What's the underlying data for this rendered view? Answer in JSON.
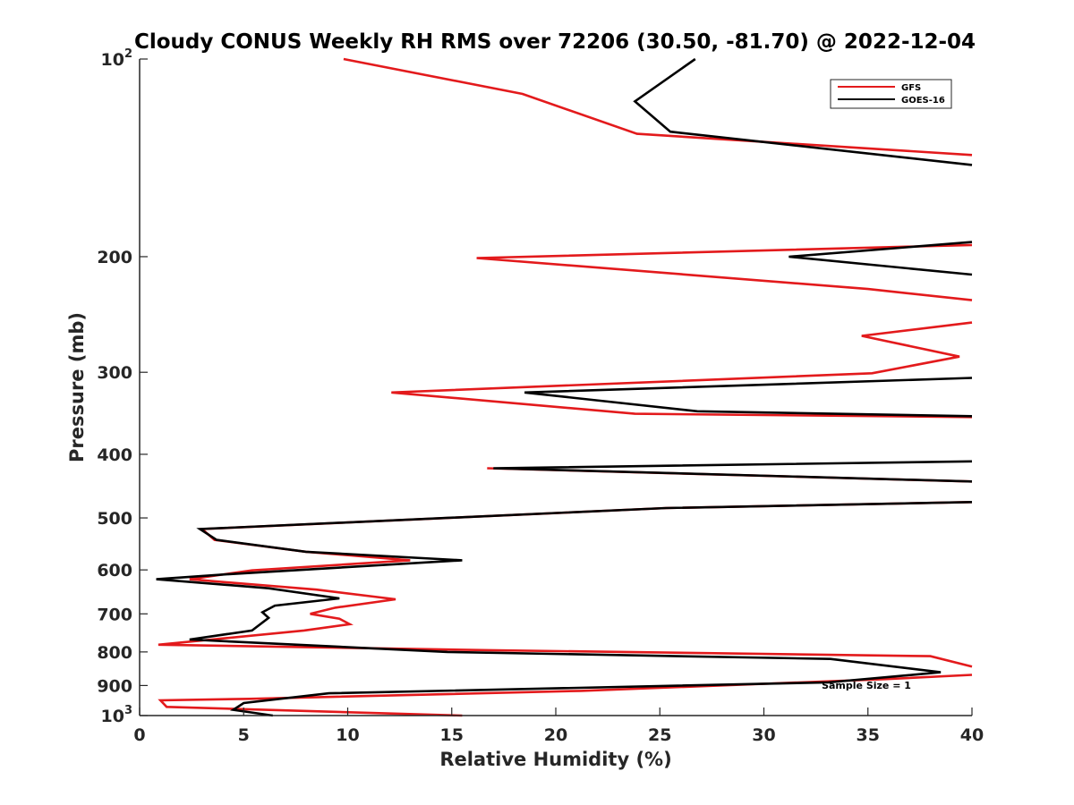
{
  "chart_data": {
    "type": "line",
    "title": "Cloudy CONUS Weekly RH RMS over 72206 (30.50, -81.70) @ 2022-12-04",
    "xlabel": "Relative Humidity (%)",
    "ylabel": "Pressure (mb)",
    "xlim": [
      0,
      40
    ],
    "ylim": [
      100,
      1000
    ],
    "yscale": "log",
    "y_reversed": true,
    "grid": false,
    "legend_position": "top-right",
    "xticks": [
      0,
      5,
      10,
      15,
      20,
      25,
      30,
      35,
      40
    ],
    "xtick_labels": [
      "0",
      "5",
      "10",
      "15",
      "20",
      "25",
      "30",
      "35",
      "40"
    ],
    "yticks": [
      100,
      200,
      300,
      400,
      500,
      600,
      700,
      800,
      900,
      1000
    ],
    "ytick_labels": [
      {
        "base": "10",
        "exp": "2"
      },
      {
        "base": "200",
        "exp": ""
      },
      {
        "base": "300",
        "exp": ""
      },
      {
        "base": "400",
        "exp": ""
      },
      {
        "base": "500",
        "exp": ""
      },
      {
        "base": "600",
        "exp": ""
      },
      {
        "base": "700",
        "exp": ""
      },
      {
        "base": "800",
        "exp": ""
      },
      {
        "base": "900",
        "exp": ""
      },
      {
        "base": "10",
        "exp": "3"
      }
    ],
    "annotation": "Sample Size = 1",
    "series": [
      {
        "name": "GFS",
        "color": "#e31a1c",
        "points": [
          [
            9.8,
            100
          ],
          [
            18.4,
            113
          ],
          [
            23.9,
            130
          ],
          [
            40,
            140
          ],
          null,
          [
            40,
            192
          ],
          [
            16.2,
            201
          ],
          [
            35.0,
            224
          ],
          [
            40,
            233
          ],
          null,
          [
            40,
            252
          ],
          [
            34.7,
            264
          ],
          [
            39.4,
            284
          ],
          [
            35.2,
            301
          ],
          [
            12.1,
            322
          ],
          [
            23.8,
            347
          ],
          [
            40,
            351
          ],
          null,
          [
            16.7,
            420
          ],
          [
            40,
            440
          ],
          null,
          [
            40,
            473
          ],
          [
            25.3,
            483
          ],
          [
            3.0,
            520
          ],
          [
            3.6,
            540
          ],
          [
            8.0,
            563
          ],
          [
            13.0,
            580
          ],
          [
            5.4,
            601
          ],
          [
            2.4,
            620
          ],
          [
            8.5,
            643
          ],
          [
            12.3,
            665
          ],
          [
            9.4,
            685
          ],
          [
            8.2,
            700
          ],
          [
            9.6,
            712
          ],
          [
            10.1,
            726
          ],
          [
            7.9,
            742
          ],
          [
            0.9,
            780
          ],
          [
            16.8,
            795
          ],
          [
            38.0,
            812
          ],
          [
            40,
            842
          ],
          null,
          [
            40,
            867
          ],
          [
            35.8,
            880
          ],
          [
            21.2,
            917
          ],
          [
            5.3,
            943
          ],
          [
            1.0,
            948
          ],
          [
            1.3,
            970
          ],
          [
            15.5,
            1000
          ]
        ]
      },
      {
        "name": "GOES-16",
        "color": "#000000",
        "points": [
          [
            26.7,
            100
          ],
          [
            23.8,
            116
          ],
          [
            25.5,
            129
          ],
          [
            40,
            145
          ],
          null,
          [
            40,
            190
          ],
          [
            31.2,
            200
          ],
          [
            40,
            213
          ],
          null,
          [
            40,
            306
          ],
          [
            18.5,
            322
          ],
          [
            26.8,
            344
          ],
          [
            40,
            350
          ],
          null,
          [
            40,
            410
          ],
          [
            17.0,
            420
          ],
          [
            40,
            440
          ],
          null,
          [
            40,
            473
          ],
          [
            25.3,
            483
          ],
          [
            2.9,
            520
          ],
          [
            3.7,
            540
          ],
          [
            8.0,
            563
          ],
          [
            15.5,
            580
          ],
          [
            4.3,
            609
          ],
          [
            0.8,
            620
          ],
          [
            6.2,
            640
          ],
          [
            9.6,
            663
          ],
          [
            6.5,
            680
          ],
          [
            5.9,
            696
          ],
          [
            6.2,
            710
          ],
          [
            5.4,
            742
          ],
          [
            2.4,
            766
          ],
          [
            14.8,
            800
          ],
          [
            33.2,
            820
          ],
          [
            38.5,
            859
          ],
          [
            33.1,
            890
          ],
          [
            9.1,
            925
          ],
          [
            5.0,
            957
          ],
          [
            4.5,
            980
          ],
          [
            6.4,
            1000
          ]
        ]
      }
    ]
  }
}
